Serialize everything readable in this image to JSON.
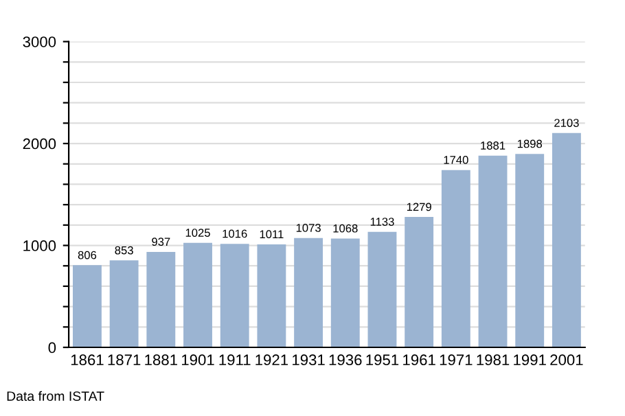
{
  "chart_data": {
    "type": "bar",
    "categories": [
      "1861",
      "1871",
      "1881",
      "1901",
      "1911",
      "1921",
      "1931",
      "1936",
      "1951",
      "1961",
      "1971",
      "1981",
      "1991",
      "2001"
    ],
    "values": [
      806,
      853,
      937,
      1025,
      1016,
      1011,
      1073,
      1068,
      1133,
      1279,
      1740,
      1881,
      1898,
      2103
    ],
    "color": "#9bb4d2",
    "ylim": [
      0,
      3000
    ],
    "yticks": [
      0,
      {
        "value": 200,
        "label": null
      },
      {
        "value": 400,
        "label": null
      },
      {
        "value": 600,
        "label": null
      },
      {
        "value": 800,
        "label": null
      },
      1000,
      {
        "value": 1200,
        "label": null
      },
      {
        "value": 1400,
        "label": null
      },
      {
        "value": 1600,
        "label": null
      },
      {
        "value": 1800,
        "label": null
      },
      2000,
      {
        "value": 2200,
        "label": null
      },
      {
        "value": 2400,
        "label": null
      },
      {
        "value": 2600,
        "label": null
      },
      {
        "value": 2800,
        "label": null
      },
      3000
    ],
    "grid": "y",
    "data_labels": true,
    "annotations": [
      "Data from ISTAT"
    ]
  }
}
